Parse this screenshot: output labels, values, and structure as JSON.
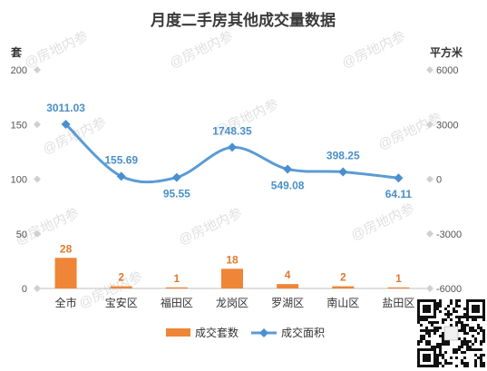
{
  "colors": {
    "bar": "#ef8536",
    "line": "#5b9bd5",
    "marker": "#4a8fd0",
    "grid": "#e6e6e6",
    "axis": "#bfbfbf"
  },
  "watermark_text": "@房地内参",
  "chart_data": {
    "type": "bar+line",
    "title": "月度二手房其他成交量数据",
    "categories": [
      "全市",
      "宝安区",
      "福田区",
      "龙岗区",
      "罗湖区",
      "南山区",
      "盐田区"
    ],
    "series": [
      {
        "name": "成交套数",
        "type": "bar",
        "axis": "left",
        "values": [
          28,
          2,
          1,
          18,
          4,
          2,
          1
        ]
      },
      {
        "name": "成交面积",
        "type": "line",
        "axis": "right",
        "values": [
          3011.03,
          155.69,
          95.55,
          1748.35,
          549.08,
          398.25,
          64.11
        ]
      }
    ],
    "left_axis": {
      "unit": "套",
      "ticks": [
        0,
        50,
        100,
        150,
        200
      ],
      "range": [
        0,
        200
      ]
    },
    "right_axis": {
      "unit": "平方米",
      "ticks": [
        -6000,
        -3000,
        0,
        3000,
        6000
      ],
      "range": [
        -6000,
        6000
      ]
    },
    "legend_position": "bottom",
    "grid": false
  }
}
